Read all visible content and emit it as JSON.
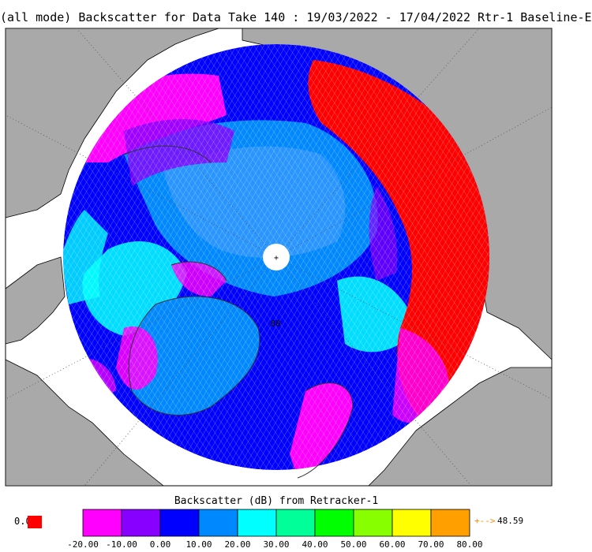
{
  "title": "(all mode) Backscatter for Data Take 140 : 19/03/2022 - 17/04/2022 Rtr-1 Baseline-E",
  "latitude_label": "80",
  "colorbar": {
    "title": "Backscatter (dB) from Retracker-1",
    "ticks": [
      "-20.00",
      "-10.00",
      "0.00",
      "10.00",
      "20.00",
      "30.00",
      "40.00",
      "50.00",
      "60.00",
      "70.00",
      "80.00"
    ],
    "colors": [
      "#ff00ff",
      "#8800ff",
      "#0000ff",
      "#0088ff",
      "#00ffff",
      "#00ff99",
      "#00ff00",
      "#88ff00",
      "#ffff00",
      "#ffa000"
    ],
    "min_value": "0.0",
    "min_color": "#ff0000",
    "max_value": "48.59",
    "max_arrow": "+-->",
    "max_color": "#ff8c00"
  },
  "map_colors": {
    "land": "#a9a9a9",
    "ocean": "#ffffff",
    "pole_hole": "#ffffff"
  }
}
